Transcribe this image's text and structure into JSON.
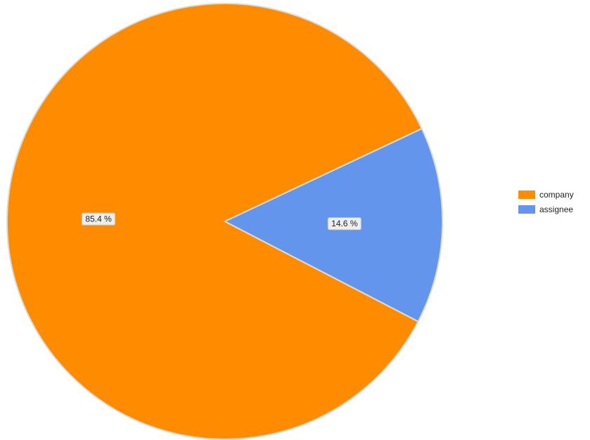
{
  "chart_data": {
    "type": "pie",
    "categories": [
      "company",
      "assignee"
    ],
    "values": [
      85.4,
      14.6
    ],
    "data_labels": [
      "85.4 %",
      "14.6 %"
    ],
    "colors": [
      "#ff8c00",
      "#6495ed"
    ],
    "legend_position": "right"
  },
  "legend": {
    "items": [
      {
        "label": "company",
        "color": "#ff8c00"
      },
      {
        "label": "assignee",
        "color": "#6495ed"
      }
    ]
  }
}
